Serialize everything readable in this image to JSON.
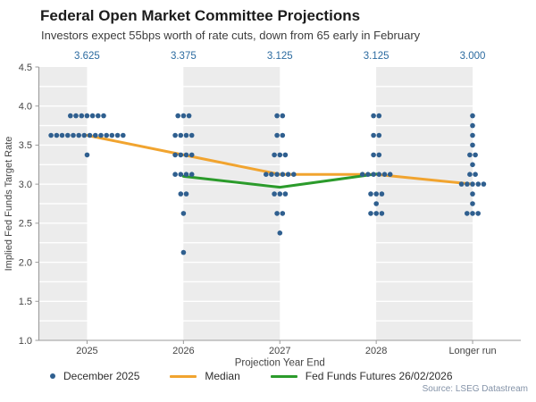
{
  "header": {
    "title": "Federal Open Market Committee Projections",
    "subtitle": "Investors expect 55bps worth of rate cuts, down from 65 early in February"
  },
  "chart_data": {
    "type": "scatter",
    "title": "Federal Open Market Committee Projections",
    "xlabel": "Projection Year End",
    "ylabel": "Implied Fed Funds Target Rate",
    "ylim": [
      1.0,
      4.5
    ],
    "ytick_step": 0.5,
    "ytick_labels": [
      "4.5",
      "4.0",
      "3.5",
      "3.0",
      "2.5",
      "2.0",
      "1.5",
      "1.0"
    ],
    "categories": [
      "2025",
      "2026",
      "2027",
      "2028",
      "Longer run"
    ],
    "top_axis_labels": [
      "3.625",
      "3.375",
      "3.125",
      "3.125",
      "3.000"
    ],
    "top_axis_color": "#2c6ba0",
    "band_color": "#ececec",
    "grid": "white horizontal lines every 0.25 over alternating gray column bands",
    "legend_position": "bottom",
    "dot_series": {
      "name": "December 2025",
      "color": "#2f5f8f",
      "columns": [
        {
          "category": "2025",
          "dots": [
            {
              "rate": 3.875,
              "count": 7
            },
            {
              "rate": 3.625,
              "count": 14
            },
            {
              "rate": 3.375,
              "count": 1
            }
          ]
        },
        {
          "category": "2026",
          "dots": [
            {
              "rate": 3.875,
              "count": 3
            },
            {
              "rate": 3.625,
              "count": 4
            },
            {
              "rate": 3.375,
              "count": 4
            },
            {
              "rate": 3.125,
              "count": 4
            },
            {
              "rate": 2.875,
              "count": 2
            },
            {
              "rate": 2.625,
              "count": 1
            },
            {
              "rate": 2.125,
              "count": 1
            }
          ]
        },
        {
          "category": "2027",
          "dots": [
            {
              "rate": 3.875,
              "count": 2
            },
            {
              "rate": 3.625,
              "count": 2
            },
            {
              "rate": 3.375,
              "count": 3
            },
            {
              "rate": 3.125,
              "count": 6
            },
            {
              "rate": 2.875,
              "count": 3
            },
            {
              "rate": 2.625,
              "count": 2
            },
            {
              "rate": 2.375,
              "count": 1
            }
          ]
        },
        {
          "category": "2028",
          "dots": [
            {
              "rate": 3.875,
              "count": 2
            },
            {
              "rate": 3.625,
              "count": 2
            },
            {
              "rate": 3.375,
              "count": 2
            },
            {
              "rate": 3.125,
              "count": 6
            },
            {
              "rate": 2.875,
              "count": 3
            },
            {
              "rate": 2.75,
              "count": 1
            },
            {
              "rate": 2.625,
              "count": 3
            }
          ]
        },
        {
          "category": "Longer run",
          "dots": [
            {
              "rate": 3.875,
              "count": 1
            },
            {
              "rate": 3.75,
              "count": 1
            },
            {
              "rate": 3.625,
              "count": 1
            },
            {
              "rate": 3.5,
              "count": 1
            },
            {
              "rate": 3.375,
              "count": 2
            },
            {
              "rate": 3.25,
              "count": 1
            },
            {
              "rate": 3.125,
              "count": 2
            },
            {
              "rate": 3.0,
              "count": 5
            },
            {
              "rate": 2.875,
              "count": 1
            },
            {
              "rate": 2.75,
              "count": 1
            },
            {
              "rate": 2.625,
              "count": 3
            }
          ]
        }
      ]
    },
    "lines": [
      {
        "name": "Median",
        "color": "#f1a42f",
        "points": [
          {
            "category": "2025",
            "value": 3.625
          },
          {
            "category": "2026",
            "value": 3.375
          },
          {
            "category": "2027",
            "value": 3.125
          },
          {
            "category": "2028",
            "value": 3.125
          },
          {
            "category": "Longer run",
            "value": 3.0
          }
        ]
      },
      {
        "name": "Fed Funds Futures 26/02/2026",
        "color": "#2b9b2b",
        "points": [
          {
            "category": "2026",
            "value": 3.1
          },
          {
            "category": "2027",
            "value": 2.96
          },
          {
            "category": "2028",
            "value": 3.13
          }
        ]
      }
    ]
  },
  "legend": {
    "items": [
      {
        "label": "December 2025",
        "marker": "dot",
        "color": "#2f5f8f"
      },
      {
        "label": "Median",
        "marker": "line",
        "color": "#f1a42f"
      },
      {
        "label": "Fed Funds Futures 26/02/2026",
        "marker": "line",
        "color": "#2b9b2b"
      }
    ]
  },
  "source": "Source: LSEG Datastream"
}
